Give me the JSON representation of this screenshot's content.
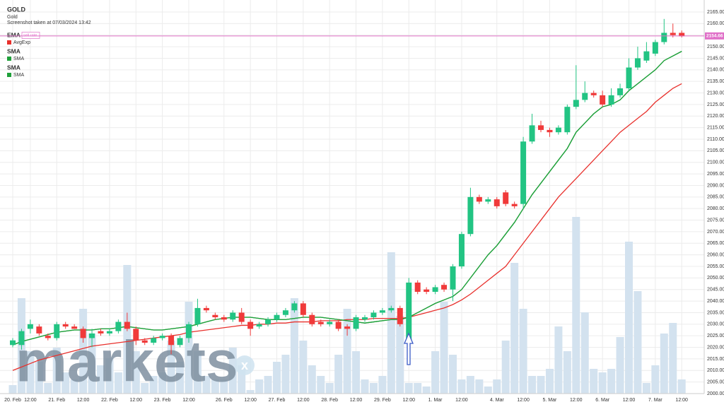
{
  "chart_data": {
    "type": "candlestick",
    "title": "GOLD",
    "subtitle": "Gold",
    "note": "Screenshot taken at 07/03/2024 13:42",
    "watermark": "markets",
    "watermark_mark": "x",
    "categories": [
      "20. Feb",
      null,
      "12:00",
      null,
      null,
      "21. Feb",
      null,
      null,
      "12:00",
      null,
      null,
      "22. Feb",
      null,
      null,
      "12:00",
      null,
      null,
      "23. Feb",
      null,
      null,
      "12:00",
      null,
      null,
      null,
      "26. Feb",
      null,
      null,
      "12:00",
      null,
      null,
      "27. Feb",
      null,
      null,
      "12:00",
      null,
      null,
      "28. Feb",
      null,
      null,
      "12:00",
      null,
      null,
      "29. Feb",
      null,
      null,
      "12:00",
      null,
      null,
      "1. Mar",
      null,
      null,
      "12:00",
      null,
      null,
      null,
      "4. Mar",
      null,
      null,
      "12:00",
      null,
      null,
      "5. Mar",
      null,
      null,
      "12:00",
      null,
      null,
      "6. Mar",
      null,
      null,
      "12:00",
      null,
      null,
      "7. Mar",
      null,
      null,
      "12:00"
    ],
    "open": [
      2021,
      2021,
      2028,
      2029,
      2025,
      2024,
      2030,
      2029,
      2028,
      2024,
      2027,
      2026,
      2027,
      2031,
      2028,
      2023,
      2022,
      2024,
      2025,
      2021,
      2024,
      2030,
      2037,
      2034,
      2033,
      2032,
      2035,
      2031,
      2029,
      2030,
      2032,
      2034,
      2036,
      2039,
      2034,
      2031,
      2030,
      2031,
      2029,
      2028,
      2032,
      2033,
      2035,
      2036,
      2037,
      2022,
      2048,
      2045,
      2044,
      2047,
      2045,
      2055,
      2069,
      2085,
      2083,
      2084,
      2087,
      2082,
      2082,
      2109,
      2116,
      2114,
      2113,
      2113,
      2124,
      2127,
      2130,
      2129,
      2125,
      2129,
      2132,
      2141,
      2144,
      2147,
      2152,
      2156,
      2156
    ],
    "high": [
      2024,
      2028,
      2032,
      2030,
      2026,
      2031,
      2031,
      2030,
      2029,
      2028,
      2028,
      2028,
      2032,
      2035,
      2029,
      2024,
      2025,
      2026,
      2026,
      2025,
      2031,
      2041,
      2038,
      2035,
      2034,
      2036,
      2037,
      2032,
      2031,
      2033,
      2035,
      2037,
      2040,
      2040,
      2035,
      2032,
      2032,
      2032,
      2030,
      2034,
      2034,
      2036,
      2037,
      2038,
      2038,
      2050,
      2049,
      2046,
      2047,
      2048,
      2056,
      2070,
      2089,
      2086,
      2085,
      2085,
      2088,
      2083,
      2111,
      2121,
      2118,
      2115,
      2116,
      2125,
      2142,
      2135,
      2131,
      2131,
      2132,
      2134,
      2145,
      2150,
      2152,
      2153,
      2162,
      2160,
      2157
    ],
    "low": [
      2020,
      2019,
      2026,
      2025,
      2023,
      2023,
      2028,
      2028,
      2022,
      2020,
      2025,
      2025,
      2026,
      2027,
      2021,
      2021,
      2021,
      2023,
      2017,
      2020,
      2022,
      2029,
      2035,
      2032,
      2031,
      2031,
      2030,
      2025,
      2028,
      2029,
      2031,
      2033,
      2035,
      2033,
      2029,
      2029,
      2029,
      2027,
      2025,
      2027,
      2031,
      2032,
      2034,
      2035,
      2029,
      2021,
      2043,
      2043,
      2043,
      2044,
      2040,
      2054,
      2068,
      2082,
      2082,
      2080,
      2081,
      2080,
      2080,
      2108,
      2113,
      2111,
      2112,
      2112,
      2123,
      2126,
      2128,
      2124,
      2124,
      2128,
      2131,
      2140,
      2143,
      2146,
      2151,
      2154,
      2154
    ],
    "close": [
      2023,
      2027,
      2030,
      2026,
      2024,
      2030,
      2029,
      2028,
      2024,
      2026,
      2026,
      2027,
      2031,
      2028,
      2023,
      2022,
      2024,
      2025,
      2021,
      2024,
      2030,
      2037,
      2036,
      2033,
      2032,
      2035,
      2031,
      2028,
      2030,
      2032,
      2034,
      2036,
      2039,
      2034,
      2030,
      2030,
      2031,
      2028,
      2028,
      2033,
      2033,
      2035,
      2036,
      2037,
      2030,
      2048,
      2044,
      2044,
      2046,
      2045,
      2055,
      2069,
      2085,
      2083,
      2084,
      2081,
      2082,
      2081,
      2109,
      2116,
      2114,
      2113,
      2115,
      2124,
      2127,
      2130,
      2129,
      2125,
      2129,
      2132,
      2141,
      2145,
      2148,
      2152,
      2156,
      2155,
      2154.5
    ],
    "volume": [
      12,
      135,
      60,
      45,
      15,
      65,
      30,
      20,
      120,
      85,
      40,
      50,
      30,
      182,
      60,
      15,
      25,
      30,
      75,
      45,
      130,
      60,
      25,
      20,
      20,
      65,
      40,
      5,
      20,
      25,
      45,
      55,
      135,
      75,
      40,
      25,
      15,
      55,
      120,
      60,
      20,
      15,
      25,
      200,
      110,
      15,
      15,
      10,
      60,
      130,
      55,
      20,
      25,
      20,
      10,
      20,
      75,
      185,
      120,
      25,
      25,
      35,
      95,
      60,
      250,
      115,
      35,
      30,
      35,
      80,
      215,
      145,
      15,
      40,
      85,
      100,
      20
    ],
    "vlim": [
      0,
      300
    ],
    "up_color": "#22c483",
    "down_color": "#f03a3a",
    "volume_color": "#d3e2ef",
    "series": [
      {
        "indicator": "EMA",
        "tag": "sell rate",
        "name": "AvgExp",
        "color": "#e8302c",
        "values": [
          2010,
          2011.5,
          2013,
          2014.5,
          2015.5,
          2016.5,
          2017.5,
          2018.5,
          2019.5,
          2020.5,
          2021,
          2021.5,
          2022,
          2022.5,
          2023,
          2023.5,
          2024,
          2024.5,
          2025,
          2025.5,
          2026.5,
          2027,
          2027.5,
          2028,
          2028.5,
          2029,
          2029.5,
          2029.5,
          2030,
          2030,
          2030.5,
          2030.5,
          2031,
          2031,
          2031,
          2031.5,
          2031.5,
          2031.5,
          2032,
          2032,
          2032,
          2032.5,
          2032.5,
          2032.5,
          2032.5,
          2033,
          2034,
          2035,
          2036,
          2037,
          2038.5,
          2040.5,
          2043,
          2046,
          2049,
          2052,
          2055,
          2060,
          2065,
          2070,
          2075,
          2080,
          2085,
          2089,
          2093,
          2097,
          2101,
          2105,
          2109,
          2113,
          2116,
          2119,
          2122,
          2126,
          2129,
          2132,
          2134
        ]
      },
      {
        "indicator": "SMA",
        "name": "SMA",
        "color": "#1fa03a",
        "values": [
          2021,
          2022.5,
          2023.5,
          2024.5,
          2025.5,
          2026.5,
          2027,
          2027.5,
          2027.5,
          2027.5,
          2028,
          2028,
          2028.5,
          2029,
          2028.5,
          2028,
          2027.5,
          2027.5,
          2028,
          2028.5,
          2029,
          2030,
          2031,
          2032,
          2032.5,
          2033,
          2033,
          2033,
          2032.5,
          2032,
          2032,
          2032,
          2032.5,
          2033,
          2033,
          2033,
          2032.5,
          2032,
          2031.5,
          2031,
          2030.5,
          2031,
          2031.5,
          2032,
          2032,
          2033,
          2035,
          2037,
          2039,
          2040.5,
          2042,
          2045,
          2050,
          2055,
          2060,
          2064,
          2069,
          2074,
          2080,
          2086,
          2091,
          2096,
          2101,
          2106,
          2113,
          2117,
          2121,
          2124,
          2125,
          2127,
          2131,
          2134,
          2137,
          2140,
          2144,
          2146,
          2148
        ]
      },
      {
        "indicator": "SMA",
        "name": "SMA",
        "color": "#1fa03a",
        "values": [
          2021,
          2022.5,
          2023.5,
          2024.5,
          2025.5,
          2026.5,
          2027,
          2027.5,
          2027.5,
          2027.5,
          2028,
          2028,
          2028.5,
          2029,
          2028.5,
          2028,
          2027.5,
          2027.5,
          2028,
          2028.5,
          2029,
          2030,
          2031,
          2032,
          2032.5,
          2033,
          2033,
          2033,
          2032.5,
          2032,
          2032,
          2032,
          2032.5,
          2033,
          2033,
          2033,
          2032.5,
          2032,
          2031.5,
          2031,
          2030.5,
          2031,
          2031.5,
          2032,
          2032,
          2033,
          2035,
          2037,
          2039,
          2040.5,
          2042,
          2045,
          2050,
          2055,
          2060,
          2064,
          2069,
          2074,
          2080,
          2086,
          2091,
          2096,
          2101,
          2106,
          2113,
          2117,
          2121,
          2124,
          2125,
          2127,
          2131,
          2134,
          2137,
          2140,
          2144,
          2146,
          2148
        ]
      }
    ],
    "current_price": 2154.66,
    "current_color": "#e070c8",
    "ylim": [
      2000,
      2165
    ],
    "yticks": [
      {
        "value": 2000,
        "label": "2000.00"
      },
      {
        "value": 2005,
        "label": "2005.00"
      },
      {
        "value": 2010,
        "label": "2010.00"
      },
      {
        "value": 2015,
        "label": "2015.00"
      },
      {
        "value": 2020,
        "label": "2020.00"
      },
      {
        "value": 2025,
        "label": "2025.00"
      },
      {
        "value": 2030,
        "label": "2030.00"
      },
      {
        "value": 2035,
        "label": "2035.00"
      },
      {
        "value": 2040,
        "label": "2040.00"
      },
      {
        "value": 2045,
        "label": "2045.00"
      },
      {
        "value": 2050,
        "label": "2050.00"
      },
      {
        "value": 2055,
        "label": "2055.00"
      },
      {
        "value": 2060,
        "label": "2060.00"
      },
      {
        "value": 2065,
        "label": "2065.00"
      },
      {
        "value": 2070,
        "label": "2070.00"
      },
      {
        "value": 2075,
        "label": "2075.00"
      },
      {
        "value": 2080,
        "label": "2080.00"
      },
      {
        "value": 2085,
        "label": "2085.00"
      },
      {
        "value": 2090,
        "label": "2090.00"
      },
      {
        "value": 2095,
        "label": "2095.00"
      },
      {
        "value": 2100,
        "label": "2100.00"
      },
      {
        "value": 2105,
        "label": "2105.00"
      },
      {
        "value": 2110,
        "label": "2110.00"
      },
      {
        "value": 2115,
        "label": "2115.00"
      },
      {
        "value": 2120,
        "label": "2120.00"
      },
      {
        "value": 2125,
        "label": "2125.00"
      },
      {
        "value": 2130,
        "label": "2130.00"
      },
      {
        "value": 2135,
        "label": "2135.00"
      },
      {
        "value": 2140,
        "label": "2140.00"
      },
      {
        "value": 2145,
        "label": "2145.00"
      },
      {
        "value": 2150,
        "label": "2150.00"
      },
      {
        "value": 2155,
        "label": "2155.00"
      },
      {
        "value": 2160,
        "label": "2160.00"
      },
      {
        "value": 2165,
        "label": "2165.00"
      }
    ],
    "grid": true
  }
}
